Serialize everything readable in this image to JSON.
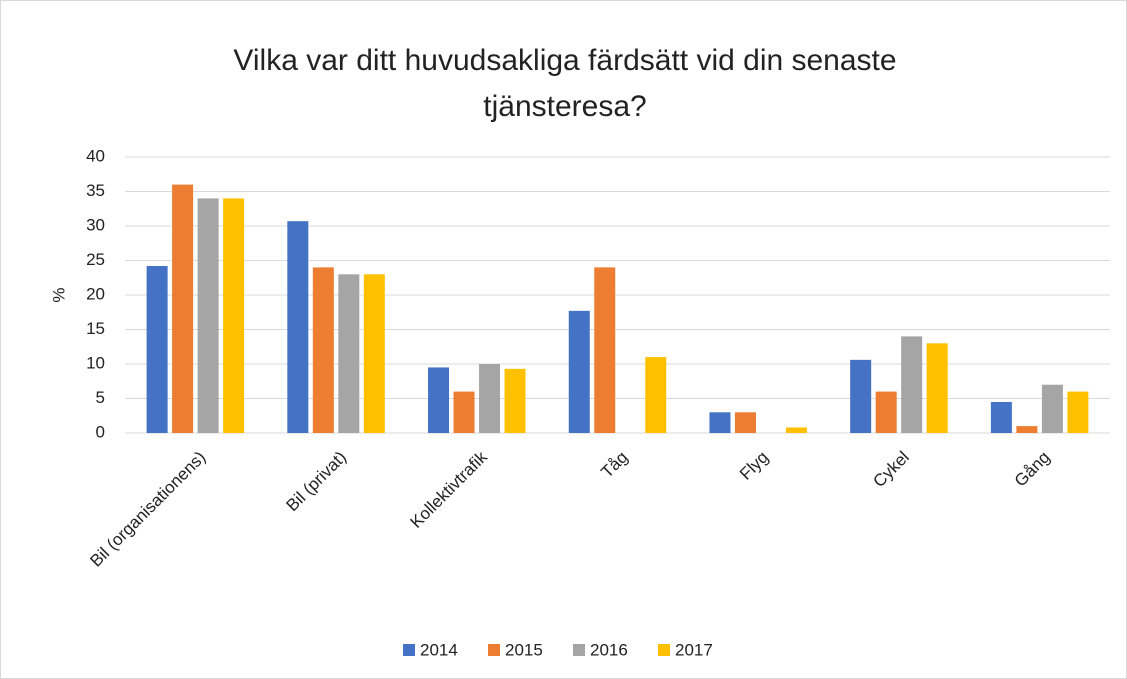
{
  "chart_data": {
    "type": "bar",
    "title": "Vilka var ditt huvudsakliga färdsätt vid din senaste tjänsteresa?",
    "y_label": "%",
    "categories": [
      "Bil (organisationens)",
      "Bil (privat)",
      "Kollektivtrafik",
      "Tåg",
      "Flyg",
      "Cykel",
      "Gång"
    ],
    "series": [
      {
        "name": "2014",
        "color": "#4472c4",
        "values": [
          24.2,
          30.7,
          9.5,
          17.7,
          3,
          10.6,
          4.5
        ]
      },
      {
        "name": "2015",
        "color": "#ed7d31",
        "values": [
          36,
          24,
          6,
          24,
          3,
          6,
          1
        ]
      },
      {
        "name": "2016",
        "color": "#a5a5a5",
        "values": [
          34,
          23,
          10,
          null,
          null,
          14,
          7
        ]
      },
      {
        "name": "2017",
        "color": "#ffc000",
        "values": [
          34,
          23,
          9.3,
          11,
          0.8,
          13,
          6
        ]
      }
    ],
    "ylim": [
      0,
      40
    ],
    "yticks": [
      0,
      5,
      10,
      15,
      20,
      25,
      30,
      35,
      40
    ],
    "grid": true,
    "legend": "bottom"
  }
}
